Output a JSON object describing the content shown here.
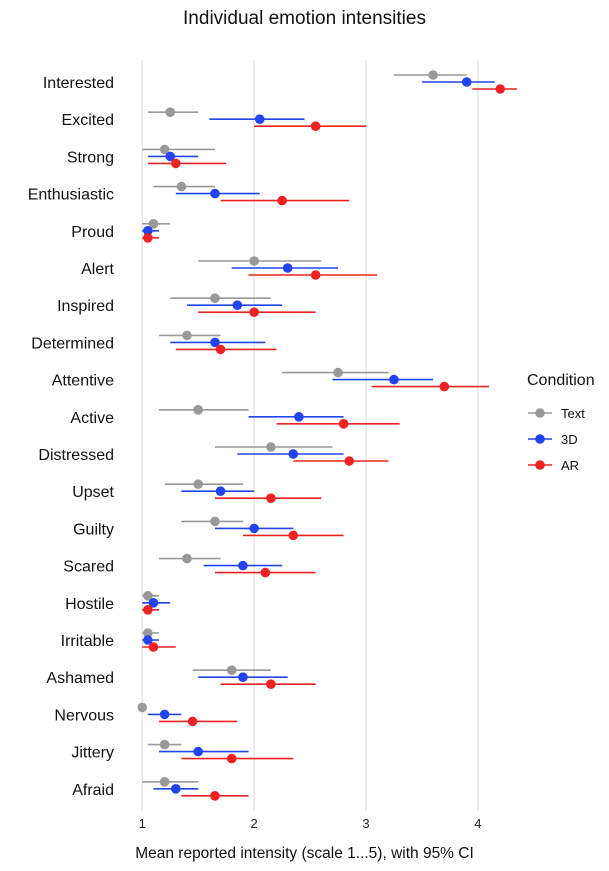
{
  "chart_data": {
    "type": "scatter",
    "title": "Individual emotion intensities",
    "xlabel": "Mean reported intensity (scale 1...5), with 95% CI",
    "ylabel": "",
    "xlim": [
      0.98,
      4.6
    ],
    "x_ticks": [
      1,
      2,
      3,
      4
    ],
    "grid": "vertical",
    "legend": {
      "title": "Condition",
      "position": "right"
    },
    "categories": [
      "Interested",
      "Excited",
      "Strong",
      "Enthusiastic",
      "Proud",
      "Alert",
      "Inspired",
      "Determined",
      "Attentive",
      "Active",
      "Distressed",
      "Upset",
      "Guilty",
      "Scared",
      "Hostile",
      "Irritable",
      "Ashamed",
      "Nervous",
      "Jittery",
      "Afraid"
    ],
    "series": [
      {
        "name": "Text",
        "color": "#999999",
        "mean": [
          3.6,
          1.25,
          1.2,
          1.35,
          1.1,
          2.0,
          1.65,
          1.4,
          2.75,
          1.5,
          2.15,
          1.5,
          1.65,
          1.4,
          1.05,
          1.05,
          1.8,
          1.0,
          1.2,
          1.2
        ],
        "lower": [
          3.25,
          1.05,
          1.0,
          1.1,
          1.0,
          1.5,
          1.25,
          1.15,
          2.25,
          1.15,
          1.65,
          1.2,
          1.35,
          1.15,
          1.0,
          1.0,
          1.45,
          1.0,
          1.05,
          1.0
        ],
        "upper": [
          3.9,
          1.5,
          1.65,
          1.65,
          1.25,
          2.6,
          2.15,
          1.7,
          3.2,
          1.95,
          2.7,
          1.9,
          1.9,
          1.7,
          1.15,
          1.15,
          2.15,
          1.0,
          1.35,
          1.5
        ]
      },
      {
        "name": "3D",
        "color": "#2244ee",
        "mean": [
          3.9,
          2.05,
          1.25,
          1.65,
          1.05,
          2.3,
          1.85,
          1.65,
          3.25,
          2.4,
          2.35,
          1.7,
          2.0,
          1.9,
          1.1,
          1.05,
          1.9,
          1.2,
          1.5,
          1.3
        ],
        "lower": [
          3.5,
          1.6,
          1.05,
          1.3,
          1.0,
          1.8,
          1.4,
          1.25,
          2.7,
          1.95,
          1.85,
          1.35,
          1.65,
          1.55,
          1.0,
          1.0,
          1.5,
          1.05,
          1.15,
          1.1
        ],
        "upper": [
          4.15,
          2.45,
          1.5,
          2.05,
          1.15,
          2.75,
          2.25,
          2.1,
          3.6,
          2.8,
          2.8,
          2.0,
          2.35,
          2.25,
          1.25,
          1.15,
          2.3,
          1.35,
          1.95,
          1.5
        ]
      },
      {
        "name": "AR",
        "color": "#ee2222",
        "mean": [
          4.2,
          2.55,
          1.3,
          2.25,
          1.05,
          2.55,
          2.0,
          1.7,
          3.7,
          2.8,
          2.85,
          2.15,
          2.35,
          2.1,
          1.05,
          1.1,
          2.15,
          1.45,
          1.8,
          1.65
        ],
        "lower": [
          3.95,
          2.0,
          1.05,
          1.7,
          1.0,
          1.95,
          1.5,
          1.3,
          3.05,
          2.2,
          2.35,
          1.65,
          1.9,
          1.65,
          1.0,
          1.0,
          1.7,
          1.15,
          1.35,
          1.35
        ],
        "upper": [
          4.35,
          3.0,
          1.75,
          2.85,
          1.15,
          3.1,
          2.55,
          2.2,
          4.1,
          3.3,
          3.2,
          2.6,
          2.8,
          2.55,
          1.15,
          1.3,
          2.55,
          1.85,
          2.35,
          1.95
        ]
      }
    ]
  }
}
